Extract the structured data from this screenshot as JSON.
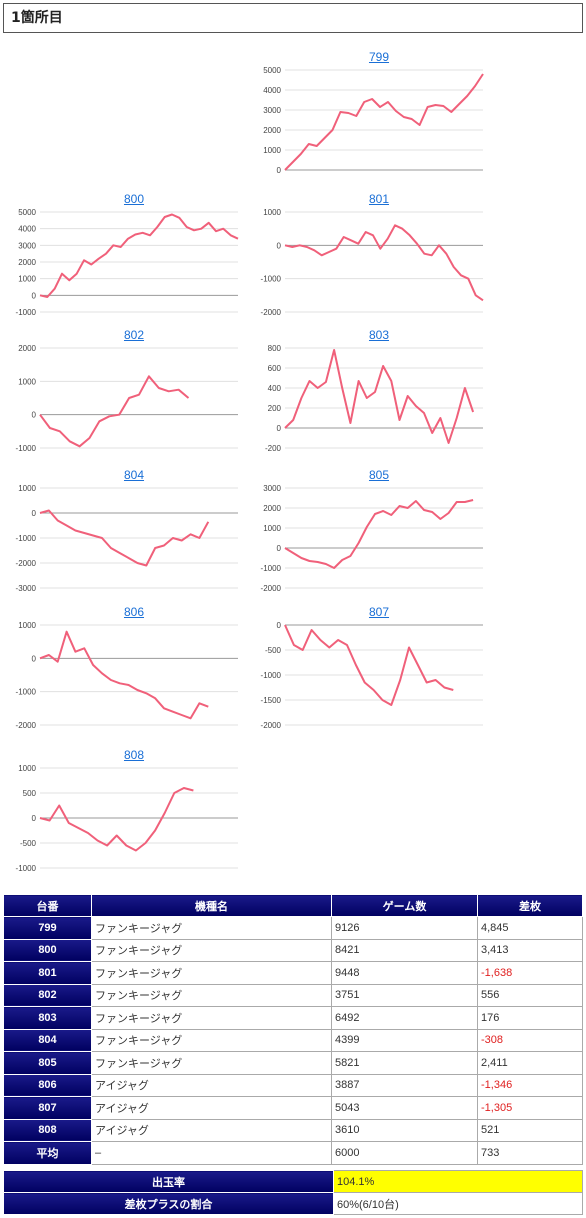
{
  "header": {
    "title": "1箇所目"
  },
  "chart_data": [
    {
      "type": "line",
      "title": "799",
      "ylim": [
        0,
        5000
      ],
      "ticks": [
        0,
        1000,
        2000,
        3000,
        4000,
        5000
      ],
      "values": [
        0,
        400,
        800,
        1300,
        1200,
        1600,
        2000,
        2900,
        2850,
        2700,
        3400,
        3550,
        3150,
        3400,
        2950,
        2650,
        2550,
        2250,
        3150,
        3250,
        3200,
        2900,
        3300,
        3700,
        4200,
        4800
      ]
    },
    {
      "type": "line",
      "title": "800",
      "ylim": [
        -1000,
        5000
      ],
      "ticks": [
        -1000,
        0,
        1000,
        2000,
        3000,
        4000,
        5000
      ],
      "values": [
        0,
        -100,
        400,
        1300,
        900,
        1300,
        2100,
        1850,
        2200,
        2500,
        3000,
        2900,
        3400,
        3650,
        3750,
        3600,
        4100,
        4700,
        4850,
        4650,
        4100,
        3900,
        4000,
        4350,
        3850,
        4000,
        3600,
        3400
      ]
    },
    {
      "type": "line",
      "title": "801",
      "ylim": [
        -2000,
        1000
      ],
      "ticks": [
        -2000,
        -1000,
        0,
        1000
      ],
      "values": [
        0,
        -50,
        0,
        -50,
        -150,
        -300,
        -200,
        -100,
        250,
        150,
        50,
        400,
        300,
        -100,
        200,
        600,
        500,
        300,
        50,
        -250,
        -300,
        0,
        -250,
        -650,
        -900,
        -1000,
        -1500,
        -1650
      ]
    },
    {
      "type": "line",
      "title": "802",
      "ylim": [
        -1000,
        2000
      ],
      "ticks": [
        -1000,
        0,
        1000,
        2000
      ],
      "values": [
        0,
        -400,
        -500,
        -800,
        -950,
        -700,
        -200,
        -50,
        0,
        500,
        600,
        1150,
        800,
        700,
        750,
        500
      ]
    },
    {
      "type": "line",
      "title": "803",
      "ylim": [
        -200,
        800
      ],
      "ticks": [
        -200,
        0,
        200,
        400,
        600,
        800
      ],
      "values": [
        0,
        80,
        300,
        470,
        400,
        460,
        780,
        400,
        50,
        470,
        300,
        360,
        620,
        470,
        80,
        320,
        220,
        150,
        -50,
        100,
        -150,
        100,
        400,
        160
      ]
    },
    {
      "type": "line",
      "title": "804",
      "ylim": [
        -3000,
        1000
      ],
      "ticks": [
        -3000,
        -2000,
        -1000,
        0,
        1000
      ],
      "values": [
        0,
        100,
        -300,
        -500,
        -700,
        -800,
        -900,
        -1000,
        -1400,
        -1600,
        -1800,
        -2000,
        -2100,
        -1400,
        -1300,
        -1000,
        -1100,
        -850,
        -1000,
        -350
      ]
    },
    {
      "type": "line",
      "title": "805",
      "ylim": [
        -2000,
        3000
      ],
      "ticks": [
        -2000,
        -1000,
        0,
        1000,
        2000,
        3000
      ],
      "values": [
        0,
        -250,
        -500,
        -650,
        -700,
        -800,
        -1000,
        -600,
        -400,
        250,
        1050,
        1700,
        1850,
        1650,
        2100,
        2000,
        2350,
        1900,
        1800,
        1450,
        1750,
        2300,
        2300,
        2400
      ]
    },
    {
      "type": "line",
      "title": "806",
      "ylim": [
        -2000,
        1000
      ],
      "ticks": [
        -2000,
        -1000,
        0,
        1000
      ],
      "values": [
        0,
        100,
        -100,
        800,
        200,
        300,
        -200,
        -450,
        -650,
        -750,
        -800,
        -950,
        -1050,
        -1200,
        -1500,
        -1600,
        -1700,
        -1800,
        -1350,
        -1450
      ]
    },
    {
      "type": "line",
      "title": "807",
      "ylim": [
        -2000,
        0
      ],
      "ticks": [
        -2000,
        -1500,
        -1000,
        -500,
        0
      ],
      "values": [
        0,
        -400,
        -500,
        -100,
        -300,
        -450,
        -300,
        -400,
        -800,
        -1150,
        -1300,
        -1500,
        -1600,
        -1100,
        -450,
        -800,
        -1150,
        -1100,
        -1250,
        -1300
      ]
    },
    {
      "type": "line",
      "title": "808",
      "ylim": [
        -1000,
        1000
      ],
      "ticks": [
        -1000,
        -500,
        0,
        500,
        1000
      ],
      "values": [
        0,
        -50,
        250,
        -100,
        -200,
        -300,
        -450,
        -550,
        -350,
        -550,
        -650,
        -500,
        -250,
        100,
        500,
        600,
        550
      ]
    }
  ],
  "table": {
    "headers": [
      "台番",
      "機種名",
      "ゲーム数",
      "差枚"
    ],
    "rows": [
      {
        "id": "799",
        "name": "ファンキージャグ",
        "games": "9126",
        "diff": "4,845",
        "neg": false
      },
      {
        "id": "800",
        "name": "ファンキージャグ",
        "games": "8421",
        "diff": "3,413",
        "neg": false
      },
      {
        "id": "801",
        "name": "ファンキージャグ",
        "games": "9448",
        "diff": "-1,638",
        "neg": true
      },
      {
        "id": "802",
        "name": "ファンキージャグ",
        "games": "3751",
        "diff": "556",
        "neg": false
      },
      {
        "id": "803",
        "name": "ファンキージャグ",
        "games": "6492",
        "diff": "176",
        "neg": false
      },
      {
        "id": "804",
        "name": "ファンキージャグ",
        "games": "4399",
        "diff": "-308",
        "neg": true
      },
      {
        "id": "805",
        "name": "ファンキージャグ",
        "games": "5821",
        "diff": "2,411",
        "neg": false
      },
      {
        "id": "806",
        "name": "アイジャグ",
        "games": "3887",
        "diff": "-1,346",
        "neg": true
      },
      {
        "id": "807",
        "name": "アイジャグ",
        "games": "5043",
        "diff": "-1,305",
        "neg": true
      },
      {
        "id": "808",
        "name": "アイジャグ",
        "games": "3610",
        "diff": "521",
        "neg": false
      },
      {
        "id": "平均",
        "name": "–",
        "games": "6000",
        "diff": "733",
        "neg": false
      }
    ]
  },
  "summary": {
    "payout_label": "出玉率",
    "payout_value": "104.1%",
    "plus_label": "差枚プラスの割合",
    "plus_value": "60%(6/10台)"
  },
  "colors": {
    "line": "#f0607a",
    "link": "#1a6fd6",
    "header_bg": "#000070",
    "highlight": "#ffff00",
    "negative": "#e02020"
  }
}
